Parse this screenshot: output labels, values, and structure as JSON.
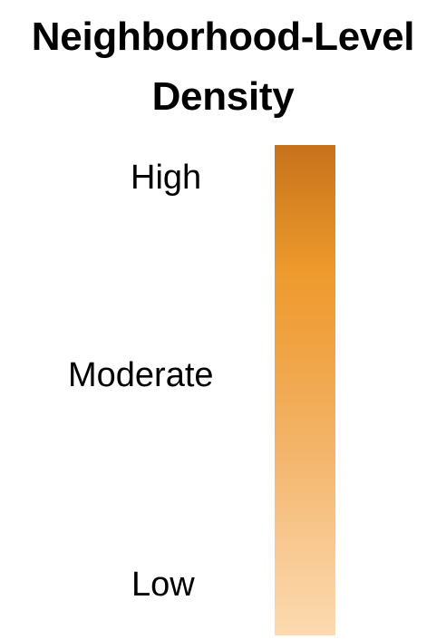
{
  "legend": {
    "title_line1": "Neighborhood-Level",
    "title_line2": "Density",
    "levels": {
      "high": "High",
      "moderate": "Moderate",
      "low": "Low"
    },
    "ramp_colors": {
      "top": "#c8711c",
      "middle": "#ee9a2d",
      "bottom": "#fcdab0"
    }
  }
}
